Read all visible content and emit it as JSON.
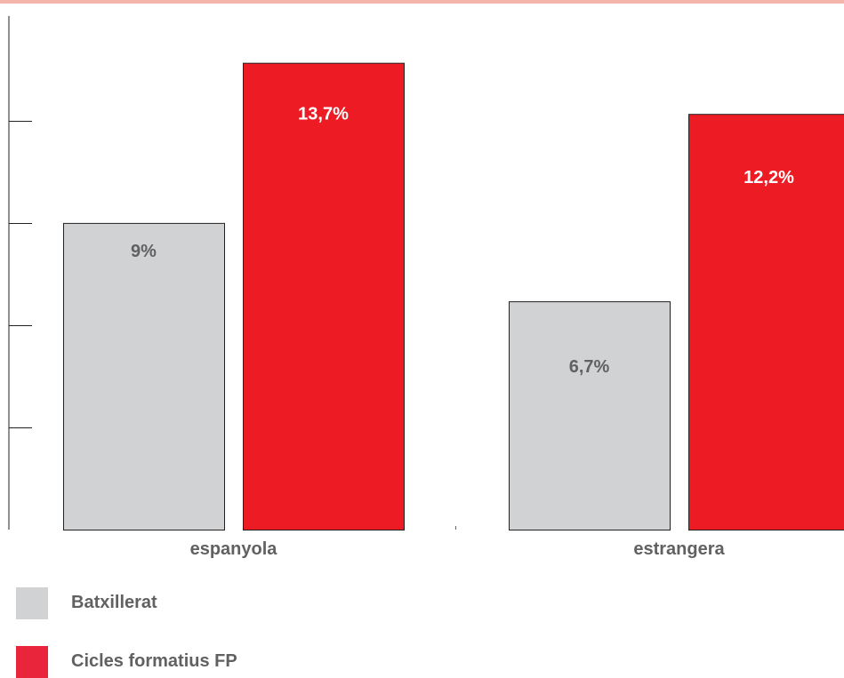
{
  "colors": {
    "top_rule": "#f4b5ac",
    "axis": "#222222",
    "batxillerat": "#d1d2d4",
    "fp": "#ed1c24",
    "fp_legend": "#e8253a",
    "label_gray": "#616161",
    "label_white": "#ffffff"
  },
  "chart_data": {
    "type": "bar",
    "categories": [
      "espanyola",
      "estrangera"
    ],
    "series": [
      {
        "name": "Batxillerat",
        "values": [
          9,
          6.7
        ],
        "labels": [
          "9%",
          "6,7%"
        ]
      },
      {
        "name": "Cicles formatius FP",
        "values": [
          13.7,
          12.2
        ],
        "labels": [
          "13,7%",
          "12,2%"
        ]
      }
    ],
    "ylim": [
      0,
      14.5
    ],
    "y_ticks": [
      3,
      6,
      9,
      12
    ],
    "grid": false,
    "legend": "bottom-left"
  },
  "legend": {
    "items": [
      {
        "label": "Batxillerat"
      },
      {
        "label": "Cicles formatius FP"
      }
    ]
  }
}
